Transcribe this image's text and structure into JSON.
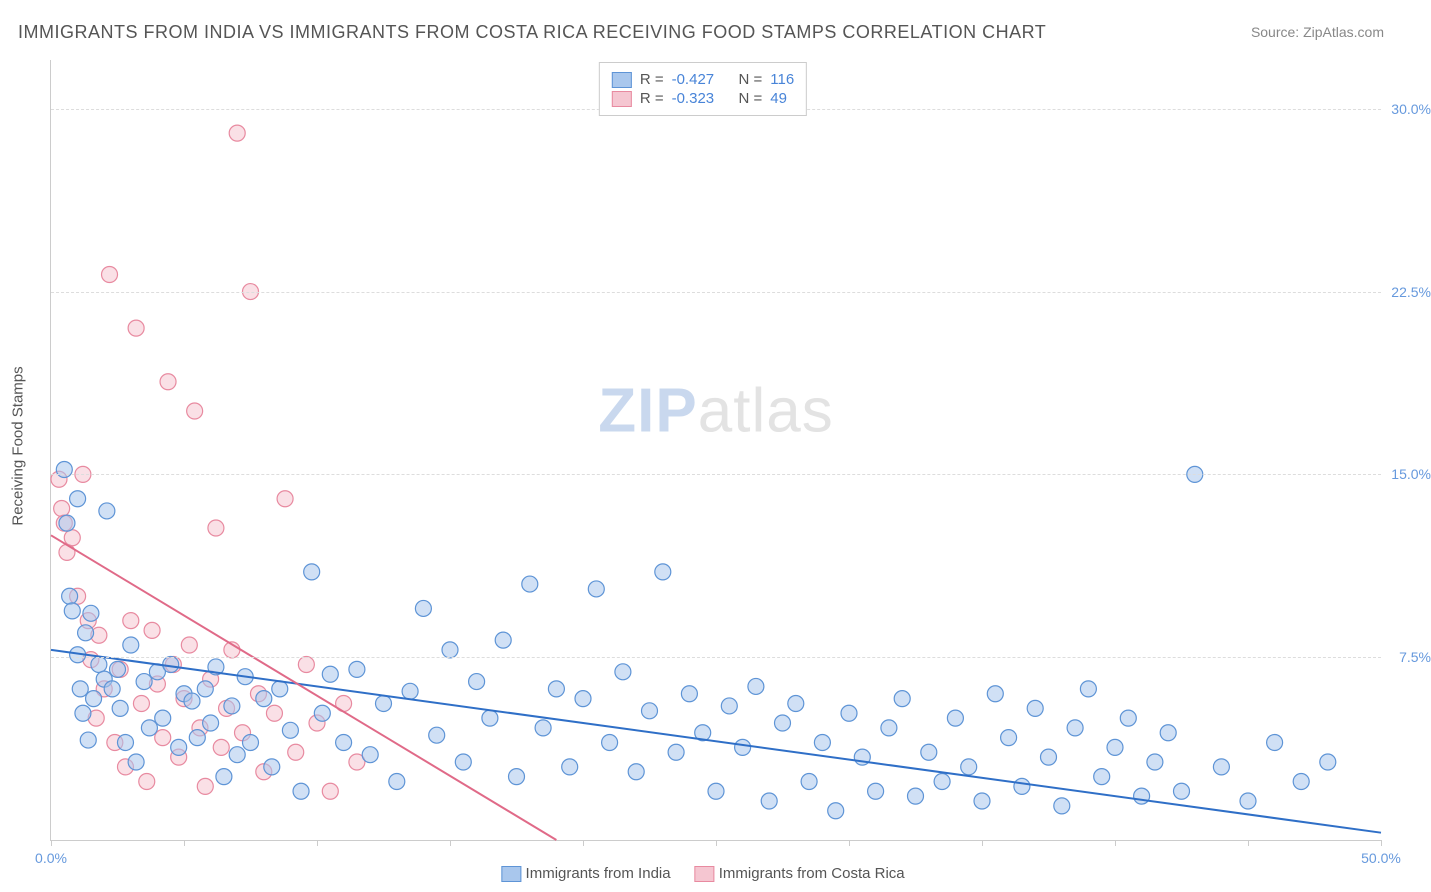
{
  "title": "IMMIGRANTS FROM INDIA VS IMMIGRANTS FROM COSTA RICA RECEIVING FOOD STAMPS CORRELATION CHART",
  "source": "Source: ZipAtlas.com",
  "yaxis_title": "Receiving Food Stamps",
  "watermark": {
    "part1": "ZIP",
    "part2": "atlas"
  },
  "chart": {
    "type": "scatter-correlation",
    "background_color": "#ffffff",
    "grid_color": "#dddddd",
    "axis_color": "#cccccc",
    "xlim": [
      0,
      50
    ],
    "ylim": [
      0,
      32
    ],
    "xticks": [
      0,
      5,
      10,
      15,
      20,
      25,
      30,
      35,
      40,
      45,
      50
    ],
    "xtick_labels": {
      "0": "0.0%",
      "50": "50.0%"
    },
    "yticks": [
      7.5,
      15.0,
      22.5,
      30.0
    ],
    "ytick_labels": [
      "7.5%",
      "15.0%",
      "22.5%",
      "30.0%"
    ],
    "marker_radius": 8,
    "marker_opacity": 0.55,
    "line_width": 2,
    "series": [
      {
        "name": "Immigrants from India",
        "color_fill": "#a9c7ed",
        "color_stroke": "#5e94d6",
        "line_color": "#2f6fc7",
        "R": "-0.427",
        "N": "116",
        "regression": {
          "x1": 0,
          "y1": 7.8,
          "x2": 50,
          "y2": 0.3
        },
        "points": [
          [
            0.5,
            15.2
          ],
          [
            0.6,
            13.0
          ],
          [
            0.7,
            10.0
          ],
          [
            0.8,
            9.4
          ],
          [
            1.0,
            14.0
          ],
          [
            1.0,
            7.6
          ],
          [
            1.1,
            6.2
          ],
          [
            1.2,
            5.2
          ],
          [
            1.3,
            8.5
          ],
          [
            1.4,
            4.1
          ],
          [
            1.5,
            9.3
          ],
          [
            1.6,
            5.8
          ],
          [
            1.8,
            7.2
          ],
          [
            2.0,
            6.6
          ],
          [
            2.1,
            13.5
          ],
          [
            2.3,
            6.2
          ],
          [
            2.5,
            7.0
          ],
          [
            2.6,
            5.4
          ],
          [
            2.8,
            4.0
          ],
          [
            3.0,
            8.0
          ],
          [
            3.2,
            3.2
          ],
          [
            3.5,
            6.5
          ],
          [
            3.7,
            4.6
          ],
          [
            4.0,
            6.9
          ],
          [
            4.2,
            5.0
          ],
          [
            4.5,
            7.2
          ],
          [
            4.8,
            3.8
          ],
          [
            5.0,
            6.0
          ],
          [
            5.3,
            5.7
          ],
          [
            5.5,
            4.2
          ],
          [
            5.8,
            6.2
          ],
          [
            6.0,
            4.8
          ],
          [
            6.2,
            7.1
          ],
          [
            6.5,
            2.6
          ],
          [
            6.8,
            5.5
          ],
          [
            7.0,
            3.5
          ],
          [
            7.3,
            6.7
          ],
          [
            7.5,
            4.0
          ],
          [
            8.0,
            5.8
          ],
          [
            8.3,
            3.0
          ],
          [
            8.6,
            6.2
          ],
          [
            9.0,
            4.5
          ],
          [
            9.4,
            2.0
          ],
          [
            9.8,
            11.0
          ],
          [
            10.2,
            5.2
          ],
          [
            10.5,
            6.8
          ],
          [
            11.0,
            4.0
          ],
          [
            11.5,
            7.0
          ],
          [
            12.0,
            3.5
          ],
          [
            12.5,
            5.6
          ],
          [
            13.0,
            2.4
          ],
          [
            13.5,
            6.1
          ],
          [
            14.0,
            9.5
          ],
          [
            14.5,
            4.3
          ],
          [
            15.0,
            7.8
          ],
          [
            15.5,
            3.2
          ],
          [
            16.0,
            6.5
          ],
          [
            16.5,
            5.0
          ],
          [
            17.0,
            8.2
          ],
          [
            17.5,
            2.6
          ],
          [
            18.0,
            10.5
          ],
          [
            18.5,
            4.6
          ],
          [
            19.0,
            6.2
          ],
          [
            19.5,
            3.0
          ],
          [
            20.0,
            5.8
          ],
          [
            20.5,
            10.3
          ],
          [
            21.0,
            4.0
          ],
          [
            21.5,
            6.9
          ],
          [
            22.0,
            2.8
          ],
          [
            22.5,
            5.3
          ],
          [
            23.0,
            11.0
          ],
          [
            23.5,
            3.6
          ],
          [
            24.0,
            6.0
          ],
          [
            24.5,
            4.4
          ],
          [
            25.0,
            2.0
          ],
          [
            25.5,
            5.5
          ],
          [
            26.0,
            3.8
          ],
          [
            26.5,
            6.3
          ],
          [
            27.0,
            1.6
          ],
          [
            27.5,
            4.8
          ],
          [
            28.0,
            5.6
          ],
          [
            28.5,
            2.4
          ],
          [
            29.0,
            4.0
          ],
          [
            29.5,
            1.2
          ],
          [
            30.0,
            5.2
          ],
          [
            30.5,
            3.4
          ],
          [
            31.0,
            2.0
          ],
          [
            31.5,
            4.6
          ],
          [
            32.0,
            5.8
          ],
          [
            32.5,
            1.8
          ],
          [
            33.0,
            3.6
          ],
          [
            33.5,
            2.4
          ],
          [
            34.0,
            5.0
          ],
          [
            34.5,
            3.0
          ],
          [
            35.0,
            1.6
          ],
          [
            35.5,
            6.0
          ],
          [
            36.0,
            4.2
          ],
          [
            36.5,
            2.2
          ],
          [
            37.0,
            5.4
          ],
          [
            37.5,
            3.4
          ],
          [
            38.0,
            1.4
          ],
          [
            38.5,
            4.6
          ],
          [
            39.0,
            6.2
          ],
          [
            39.5,
            2.6
          ],
          [
            40.0,
            3.8
          ],
          [
            40.5,
            5.0
          ],
          [
            41.0,
            1.8
          ],
          [
            41.5,
            3.2
          ],
          [
            42.0,
            4.4
          ],
          [
            42.5,
            2.0
          ],
          [
            43.0,
            15.0
          ],
          [
            44.0,
            3.0
          ],
          [
            45.0,
            1.6
          ],
          [
            46.0,
            4.0
          ],
          [
            47.0,
            2.4
          ],
          [
            48.0,
            3.2
          ]
        ]
      },
      {
        "name": "Immigrants from Costa Rica",
        "color_fill": "#f5c6d1",
        "color_stroke": "#e88aa0",
        "line_color": "#e06a88",
        "R": "-0.323",
        "N": "49",
        "regression": {
          "x1": 0,
          "y1": 12.5,
          "x2": 19,
          "y2": 0
        },
        "points": [
          [
            0.3,
            14.8
          ],
          [
            0.4,
            13.6
          ],
          [
            0.5,
            13.0
          ],
          [
            0.6,
            11.8
          ],
          [
            0.8,
            12.4
          ],
          [
            1.0,
            10.0
          ],
          [
            1.2,
            15.0
          ],
          [
            1.4,
            9.0
          ],
          [
            1.5,
            7.4
          ],
          [
            1.7,
            5.0
          ],
          [
            1.8,
            8.4
          ],
          [
            2.0,
            6.2
          ],
          [
            2.2,
            23.2
          ],
          [
            2.4,
            4.0
          ],
          [
            2.6,
            7.0
          ],
          [
            2.8,
            3.0
          ],
          [
            3.0,
            9.0
          ],
          [
            3.2,
            21.0
          ],
          [
            3.4,
            5.6
          ],
          [
            3.6,
            2.4
          ],
          [
            3.8,
            8.6
          ],
          [
            4.0,
            6.4
          ],
          [
            4.2,
            4.2
          ],
          [
            4.4,
            18.8
          ],
          [
            4.6,
            7.2
          ],
          [
            4.8,
            3.4
          ],
          [
            5.0,
            5.8
          ],
          [
            5.2,
            8.0
          ],
          [
            5.4,
            17.6
          ],
          [
            5.6,
            4.6
          ],
          [
            5.8,
            2.2
          ],
          [
            6.0,
            6.6
          ],
          [
            6.2,
            12.8
          ],
          [
            6.4,
            3.8
          ],
          [
            6.6,
            5.4
          ],
          [
            6.8,
            7.8
          ],
          [
            7.0,
            29.0
          ],
          [
            7.2,
            4.4
          ],
          [
            7.5,
            22.5
          ],
          [
            7.8,
            6.0
          ],
          [
            8.0,
            2.8
          ],
          [
            8.4,
            5.2
          ],
          [
            8.8,
            14.0
          ],
          [
            9.2,
            3.6
          ],
          [
            9.6,
            7.2
          ],
          [
            10.0,
            4.8
          ],
          [
            10.5,
            2.0
          ],
          [
            11.0,
            5.6
          ],
          [
            11.5,
            3.2
          ]
        ]
      }
    ]
  },
  "legend_top_labels": {
    "R": "R =",
    "N": "N ="
  },
  "legend_bottom": [
    {
      "label": "Immigrants from India"
    },
    {
      "label": "Immigrants from Costa Rica"
    }
  ]
}
